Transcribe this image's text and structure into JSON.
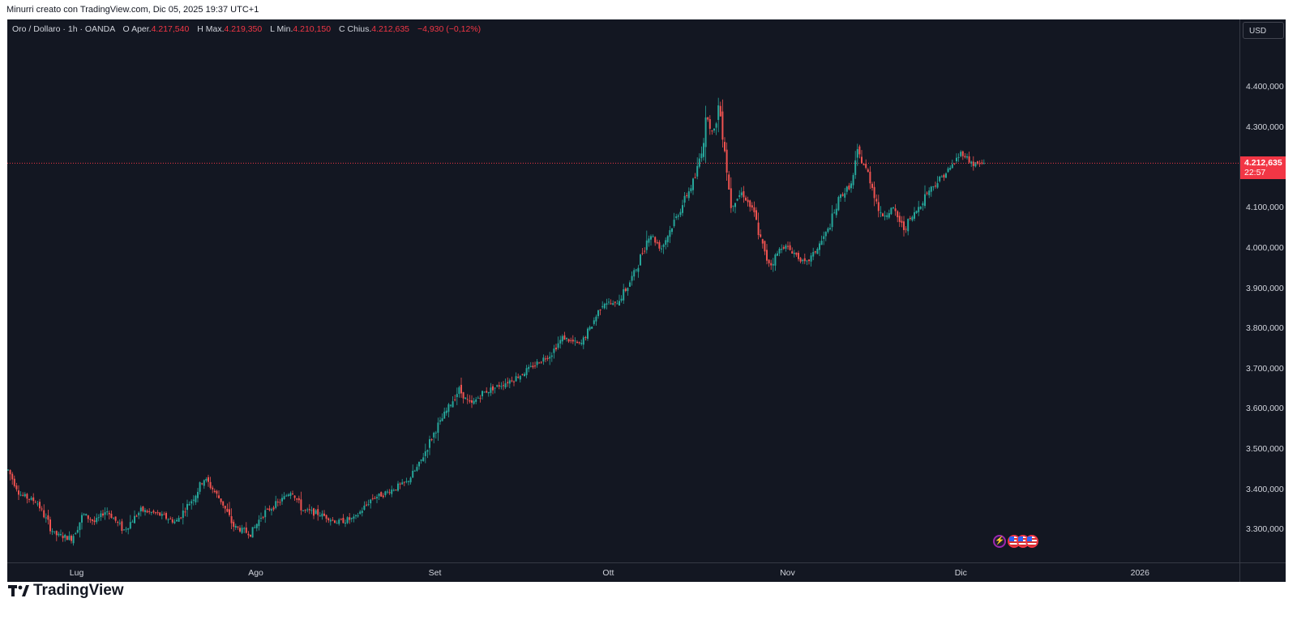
{
  "header": {
    "credit": "Minurri creato con TradingView.com, Dic 05, 2025 19:37 UTC+1"
  },
  "legend": {
    "symbol": "Oro / Dollaro · 1h · OANDA",
    "open_label": "O",
    "open_prefix": "Aper.",
    "open": "4.217,540",
    "high_label": "H",
    "high_prefix": "Max.",
    "high": "4.219,350",
    "low_label": "L",
    "low_prefix": "Min.",
    "low": "4.210,150",
    "close_label": "C",
    "close_prefix": "Chius.",
    "close": "4.212,635",
    "change": "−4,930 (−0,12%)"
  },
  "currency_button": "USD",
  "last_price": {
    "value": "4.212,635",
    "countdown": "22:57"
  },
  "footer": {
    "brand": "TradingView"
  },
  "colors": {
    "background": "#131722",
    "up": "#26a69a",
    "down": "#ef5350",
    "text": "#d1d4dc",
    "last_price": "#f23645"
  },
  "events": {
    "icons": [
      "flash-icon",
      "us-flag-icon",
      "us-flag-icon",
      "us-flag-icon"
    ]
  },
  "chart_data": {
    "type": "line",
    "candle_style": "candlestick",
    "interval": "1h",
    "y_axis": {
      "ticks": [
        3300,
        3400,
        3500,
        3600,
        3700,
        3800,
        3900,
        4000,
        4100,
        4200,
        4300,
        4400
      ],
      "tick_labels": [
        "3.300,000",
        "3.400,000",
        "3.500,000",
        "3.600,000",
        "3.700,000",
        "3.800,000",
        "3.900,000",
        "4.000,000",
        "4.100,000",
        "4.200,000",
        "4.300,000",
        "4.400,000"
      ],
      "range": [
        3220,
        4570
      ]
    },
    "x_axis": {
      "tick_labels": [
        "Lug",
        "Ago",
        "Set",
        "Ott",
        "Nov",
        "Dic",
        "2026"
      ],
      "tick_dates": [
        "2025-07-01",
        "2025-08-01",
        "2025-09-01",
        "2025-10-01",
        "2025-11-01",
        "2025-12-01",
        "2026-01-01"
      ],
      "range": [
        "2025-06-19",
        "2026-01-14"
      ]
    },
    "series": [
      {
        "x": [
          "2025-06-19",
          "2025-06-21",
          "2025-06-24",
          "2025-06-27",
          "2025-06-30",
          "2025-07-02",
          "2025-07-04",
          "2025-07-06",
          "2025-07-09",
          "2025-07-12",
          "2025-07-15",
          "2025-07-18",
          "2025-07-21",
          "2025-07-23",
          "2025-07-26",
          "2025-07-28",
          "2025-07-31",
          "2025-08-02",
          "2025-08-05",
          "2025-08-07",
          "2025-08-09",
          "2025-08-12",
          "2025-08-15",
          "2025-08-18",
          "2025-08-21",
          "2025-08-23",
          "2025-08-27",
          "2025-08-29",
          "2025-09-01",
          "2025-09-03",
          "2025-09-05",
          "2025-09-07",
          "2025-09-09",
          "2025-09-12",
          "2025-09-15",
          "2025-09-17",
          "2025-09-19",
          "2025-09-21",
          "2025-09-23",
          "2025-09-26",
          "2025-09-28",
          "2025-09-30",
          "2025-10-02",
          "2025-10-04",
          "2025-10-06",
          "2025-10-08",
          "2025-10-10",
          "2025-10-12",
          "2025-10-14",
          "2025-10-16",
          "2025-10-17",
          "2025-10-18",
          "2025-10-19",
          "2025-10-20",
          "2025-10-21",
          "2025-10-22",
          "2025-10-24",
          "2025-10-26",
          "2025-10-28",
          "2025-10-29",
          "2025-10-31",
          "2025-11-02",
          "2025-11-04",
          "2025-11-06",
          "2025-11-08",
          "2025-11-10",
          "2025-11-12",
          "2025-11-13",
          "2025-11-15",
          "2025-11-17",
          "2025-11-19",
          "2025-11-21",
          "2025-11-23",
          "2025-11-25",
          "2025-11-27",
          "2025-11-29",
          "2025-12-01",
          "2025-12-03",
          "2025-12-05"
        ],
        "y": [
          3450,
          3390,
          3370,
          3290,
          3280,
          3340,
          3320,
          3350,
          3300,
          3350,
          3340,
          3320,
          3380,
          3430,
          3370,
          3310,
          3290,
          3340,
          3370,
          3400,
          3350,
          3340,
          3320,
          3330,
          3380,
          3390,
          3420,
          3460,
          3550,
          3600,
          3650,
          3610,
          3640,
          3660,
          3680,
          3700,
          3720,
          3740,
          3780,
          3760,
          3810,
          3870,
          3860,
          3900,
          3960,
          4040,
          4000,
          4060,
          4120,
          4180,
          4250,
          4330,
          4280,
          4360,
          4250,
          4110,
          4140,
          4090,
          3980,
          3960,
          4010,
          3990,
          3960,
          4000,
          4050,
          4130,
          4160,
          4240,
          4180,
          4080,
          4100,
          4050,
          4090,
          4140,
          4170,
          4200,
          4240,
          4210,
          4212.635
        ]
      }
    ]
  }
}
